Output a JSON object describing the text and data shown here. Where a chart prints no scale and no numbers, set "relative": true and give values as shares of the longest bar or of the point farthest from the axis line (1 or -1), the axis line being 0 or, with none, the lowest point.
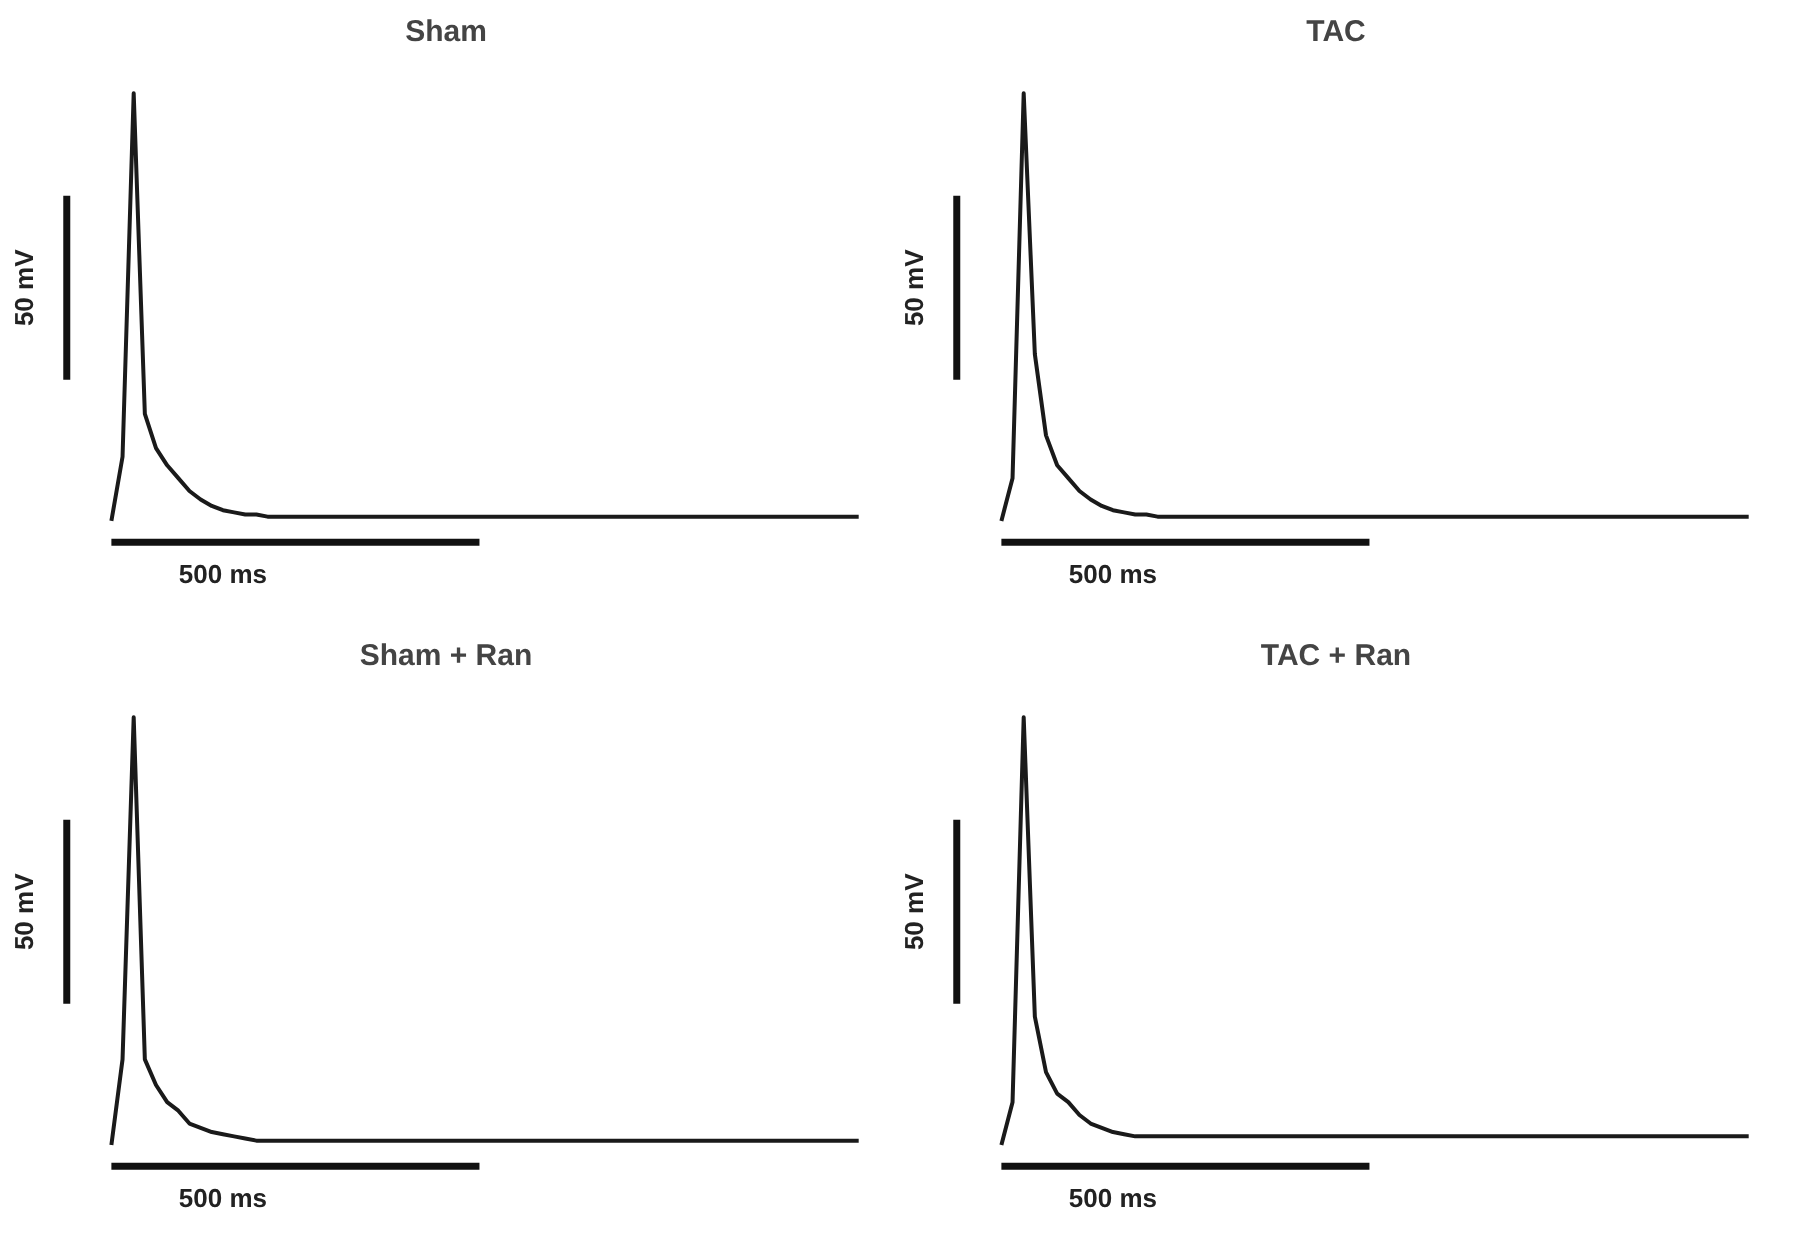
{
  "chart_data": [
    {
      "type": "line",
      "title": "Sham",
      "relative": true,
      "color": "#1a1a1a",
      "annotations": [
        "50 mV",
        "500 ms"
      ],
      "categories": [
        null,
        null,
        null,
        null,
        null,
        null,
        null,
        null,
        null,
        null,
        null,
        null,
        null,
        null,
        null,
        null,
        null,
        null,
        null,
        null,
        null,
        null,
        null,
        null,
        null,
        null,
        null,
        null,
        null,
        null,
        null,
        null,
        null,
        null,
        null,
        null,
        null,
        null,
        null,
        null,
        null,
        null,
        null,
        null,
        null,
        null,
        null,
        null,
        null,
        null,
        null,
        null,
        null,
        null,
        null,
        null,
        null,
        null,
        null,
        null,
        null,
        null,
        null,
        null,
        null,
        null,
        null,
        null
      ],
      "values": [
        0,
        0.15,
        1,
        0.25,
        0.17,
        0.13,
        0.1,
        0.07,
        0.05,
        0.035,
        0.025,
        0.02,
        0.015,
        0.015,
        0.01,
        0.01,
        0.01,
        0.01,
        0.01,
        0.01,
        0.01,
        0.01,
        0.01,
        0.01,
        0.01,
        0.01,
        0.01,
        0.01,
        0.01,
        0.01,
        0.01,
        0.01,
        0.01,
        0.01,
        0.01,
        0.01,
        0.01,
        0.01,
        0.01,
        0.01,
        0.01,
        0.01,
        0.01,
        0.01,
        0.01,
        0.01,
        0.01,
        0.01,
        0.01,
        0.01,
        0.01,
        0.01,
        0.01,
        0.01,
        0.01,
        0.01,
        0.01,
        0.01,
        0.01,
        0.01,
        0.01,
        0.01,
        0.01,
        0.01,
        0.01,
        0.01,
        0.01,
        0.01
      ]
    },
    {
      "type": "line",
      "title": "TAC",
      "relative": true,
      "color": "#1a1a1a",
      "annotations": [
        "50 mV",
        "500 ms"
      ],
      "categories": [
        null,
        null,
        null,
        null,
        null,
        null,
        null,
        null,
        null,
        null,
        null,
        null,
        null,
        null,
        null,
        null,
        null,
        null,
        null,
        null,
        null,
        null,
        null,
        null,
        null,
        null,
        null,
        null,
        null,
        null,
        null,
        null,
        null,
        null,
        null,
        null,
        null,
        null,
        null,
        null,
        null,
        null,
        null,
        null,
        null,
        null,
        null,
        null,
        null,
        null,
        null,
        null,
        null,
        null,
        null,
        null,
        null,
        null,
        null,
        null,
        null,
        null,
        null,
        null,
        null,
        null,
        null,
        null
      ],
      "values": [
        0,
        0.1,
        1,
        0.39,
        0.2,
        0.13,
        0.1,
        0.07,
        0.05,
        0.035,
        0.025,
        0.02,
        0.015,
        0.015,
        0.01,
        0.01,
        0.01,
        0.01,
        0.01,
        0.01,
        0.01,
        0.01,
        0.01,
        0.01,
        0.01,
        0.01,
        0.01,
        0.01,
        0.01,
        0.01,
        0.01,
        0.01,
        0.01,
        0.01,
        0.01,
        0.01,
        0.01,
        0.01,
        0.01,
        0.01,
        0.01,
        0.01,
        0.01,
        0.01,
        0.01,
        0.01,
        0.01,
        0.01,
        0.01,
        0.01,
        0.01,
        0.01,
        0.01,
        0.01,
        0.01,
        0.01,
        0.01,
        0.01,
        0.01,
        0.01,
        0.01,
        0.01,
        0.01,
        0.01,
        0.01,
        0.01,
        0.01,
        0.01
      ]
    },
    {
      "type": "line",
      "title": "Sham + Ran",
      "relative": true,
      "color": "#1a1a1a",
      "annotations": [
        "50 mV",
        "500 ms"
      ],
      "categories": [
        null,
        null,
        null,
        null,
        null,
        null,
        null,
        null,
        null,
        null,
        null,
        null,
        null,
        null,
        null,
        null,
        null,
        null,
        null,
        null,
        null,
        null,
        null,
        null,
        null,
        null,
        null,
        null,
        null,
        null,
        null,
        null,
        null,
        null,
        null,
        null,
        null,
        null,
        null,
        null,
        null,
        null,
        null,
        null,
        null,
        null,
        null,
        null,
        null,
        null,
        null,
        null,
        null,
        null,
        null,
        null,
        null,
        null,
        null,
        null,
        null,
        null,
        null,
        null,
        null,
        null,
        null,
        null
      ],
      "values": [
        0,
        0.2,
        1,
        0.2,
        0.14,
        0.1,
        0.08,
        0.05,
        0.04,
        0.03,
        0.025,
        0.02,
        0.015,
        0.01,
        0.01,
        0.01,
        0.01,
        0.01,
        0.01,
        0.01,
        0.01,
        0.01,
        0.01,
        0.01,
        0.01,
        0.01,
        0.01,
        0.01,
        0.01,
        0.01,
        0.01,
        0.01,
        0.01,
        0.01,
        0.01,
        0.01,
        0.01,
        0.01,
        0.01,
        0.01,
        0.01,
        0.01,
        0.01,
        0.01,
        0.01,
        0.01,
        0.01,
        0.01,
        0.01,
        0.01,
        0.01,
        0.01,
        0.01,
        0.01,
        0.01,
        0.01,
        0.01,
        0.01,
        0.01,
        0.01,
        0.01,
        0.01,
        0.01,
        0.01,
        0.01,
        0.01,
        0.01,
        0.01
      ]
    },
    {
      "type": "line",
      "title": "TAC + Ran",
      "relative": true,
      "color": "#1a1a1a",
      "annotations": [
        "50 mV",
        "500 ms"
      ],
      "categories": [
        null,
        null,
        null,
        null,
        null,
        null,
        null,
        null,
        null,
        null,
        null,
        null,
        null,
        null,
        null,
        null,
        null,
        null,
        null,
        null,
        null,
        null,
        null,
        null,
        null,
        null,
        null,
        null,
        null,
        null,
        null,
        null,
        null,
        null,
        null,
        null,
        null,
        null,
        null,
        null,
        null,
        null,
        null,
        null,
        null,
        null,
        null,
        null,
        null,
        null,
        null,
        null,
        null,
        null,
        null,
        null,
        null,
        null,
        null,
        null,
        null,
        null,
        null,
        null,
        null,
        null,
        null,
        null
      ],
      "values": [
        0,
        0.1,
        1,
        0.3,
        0.17,
        0.12,
        0.1,
        0.07,
        0.05,
        0.04,
        0.03,
        0.025,
        0.02,
        0.02,
        0.02,
        0.02,
        0.02,
        0.02,
        0.02,
        0.02,
        0.02,
        0.02,
        0.02,
        0.02,
        0.02,
        0.02,
        0.02,
        0.02,
        0.02,
        0.02,
        0.02,
        0.02,
        0.02,
        0.02,
        0.02,
        0.02,
        0.02,
        0.02,
        0.02,
        0.02,
        0.02,
        0.02,
        0.02,
        0.02,
        0.02,
        0.02,
        0.02,
        0.02,
        0.02,
        0.02,
        0.02,
        0.02,
        0.02,
        0.02,
        0.02,
        0.02,
        0.02,
        0.02,
        0.02,
        0.02,
        0.02,
        0.02,
        0.02,
        0.02,
        0.02,
        0.02,
        0.02,
        0.02
      ]
    }
  ]
}
